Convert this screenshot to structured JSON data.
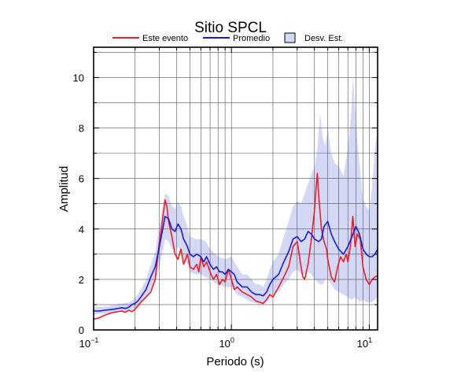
{
  "chart_data": {
    "type": "line",
    "title": "Sitio SPCL",
    "xlabel": "Periodo (s)",
    "ylabel": "Amplitud",
    "x_scale": "log",
    "xlim": [
      0.1,
      11.5
    ],
    "ylim": [
      0,
      11.2
    ],
    "x_ticks": [
      {
        "base": "10",
        "exp": "−1",
        "value": 0.1
      },
      {
        "base": "10",
        "exp": "0",
        "value": 1
      },
      {
        "base": "10",
        "exp": "1",
        "value": 10
      }
    ],
    "y_ticks": [
      "0",
      "2",
      "4",
      "6",
      "8",
      "10"
    ],
    "grid": true,
    "legend_position": "top",
    "legend": [
      {
        "label": "Este evento",
        "kind": "line",
        "color": "#ee1c25"
      },
      {
        "label": "Promedio",
        "kind": "line",
        "color": "#1a1ad6"
      },
      {
        "label": "Desv. Est.",
        "kind": "box",
        "color": "#d4d8f7"
      }
    ],
    "series": [
      {
        "name": "Este evento",
        "color": "#ee1c25",
        "points": [
          [
            0.1,
            0.42
          ],
          [
            0.11,
            0.48
          ],
          [
            0.12,
            0.58
          ],
          [
            0.13,
            0.65
          ],
          [
            0.14,
            0.7
          ],
          [
            0.15,
            0.72
          ],
          [
            0.16,
            0.75
          ],
          [
            0.17,
            0.7
          ],
          [
            0.18,
            0.78
          ],
          [
            0.19,
            0.72
          ],
          [
            0.2,
            0.82
          ],
          [
            0.21,
            0.95
          ],
          [
            0.22,
            1.1
          ],
          [
            0.24,
            1.3
          ],
          [
            0.26,
            1.5
          ],
          [
            0.28,
            2.0
          ],
          [
            0.3,
            3.5
          ],
          [
            0.31,
            4.0
          ],
          [
            0.32,
            4.6
          ],
          [
            0.33,
            5.15
          ],
          [
            0.34,
            4.9
          ],
          [
            0.35,
            4.3
          ],
          [
            0.37,
            3.7
          ],
          [
            0.39,
            3.0
          ],
          [
            0.41,
            2.8
          ],
          [
            0.43,
            3.2
          ],
          [
            0.45,
            2.6
          ],
          [
            0.48,
            3.0
          ],
          [
            0.5,
            2.5
          ],
          [
            0.53,
            2.4
          ],
          [
            0.56,
            2.6
          ],
          [
            0.58,
            2.3
          ],
          [
            0.6,
            2.9
          ],
          [
            0.63,
            2.5
          ],
          [
            0.66,
            2.7
          ],
          [
            0.7,
            2.3
          ],
          [
            0.74,
            2.0
          ],
          [
            0.78,
            2.2
          ],
          [
            0.82,
            1.8
          ],
          [
            0.86,
            2.0
          ],
          [
            0.9,
            1.9
          ],
          [
            0.95,
            2.4
          ],
          [
            1.0,
            2.0
          ],
          [
            1.05,
            1.6
          ],
          [
            1.1,
            1.7
          ],
          [
            1.2,
            1.5
          ],
          [
            1.3,
            1.4
          ],
          [
            1.4,
            1.3
          ],
          [
            1.5,
            1.15
          ],
          [
            1.6,
            1.1
          ],
          [
            1.7,
            1.05
          ],
          [
            1.8,
            1.2
          ],
          [
            1.9,
            1.4
          ],
          [
            2.0,
            1.3
          ],
          [
            2.1,
            1.5
          ],
          [
            2.2,
            1.7
          ],
          [
            2.4,
            2.1
          ],
          [
            2.6,
            2.5
          ],
          [
            2.8,
            3.3
          ],
          [
            3.0,
            3.5
          ],
          [
            3.1,
            3.0
          ],
          [
            3.2,
            2.5
          ],
          [
            3.3,
            2.1
          ],
          [
            3.4,
            2.0
          ],
          [
            3.6,
            2.6
          ],
          [
            3.8,
            3.6
          ],
          [
            4.0,
            4.7
          ],
          [
            4.1,
            5.5
          ],
          [
            4.2,
            6.2
          ],
          [
            4.3,
            5.3
          ],
          [
            4.5,
            4.0
          ],
          [
            4.7,
            3.5
          ],
          [
            4.9,
            3.2
          ],
          [
            5.0,
            2.8
          ],
          [
            5.3,
            2.1
          ],
          [
            5.6,
            1.9
          ],
          [
            5.9,
            2.5
          ],
          [
            6.2,
            2.9
          ],
          [
            6.5,
            2.7
          ],
          [
            6.8,
            3.0
          ],
          [
            7.0,
            2.7
          ],
          [
            7.3,
            3.3
          ],
          [
            7.6,
            4.5
          ],
          [
            7.9,
            3.3
          ],
          [
            8.2,
            3.8
          ],
          [
            8.6,
            3.6
          ],
          [
            9.0,
            2.5
          ],
          [
            9.5,
            2.0
          ],
          [
            10.0,
            1.8
          ],
          [
            10.5,
            2.0
          ],
          [
            11.0,
            2.1
          ],
          [
            11.5,
            2.15
          ]
        ]
      },
      {
        "name": "Promedio",
        "color": "#1a1ad6",
        "points": [
          [
            0.1,
            0.75
          ],
          [
            0.11,
            0.75
          ],
          [
            0.12,
            0.78
          ],
          [
            0.13,
            0.8
          ],
          [
            0.14,
            0.82
          ],
          [
            0.15,
            0.85
          ],
          [
            0.16,
            0.88
          ],
          [
            0.17,
            0.85
          ],
          [
            0.18,
            0.9
          ],
          [
            0.19,
            1.0
          ],
          [
            0.2,
            1.05
          ],
          [
            0.21,
            1.15
          ],
          [
            0.22,
            1.3
          ],
          [
            0.24,
            1.6
          ],
          [
            0.26,
            2.1
          ],
          [
            0.28,
            2.5
          ],
          [
            0.3,
            3.3
          ],
          [
            0.32,
            4.1
          ],
          [
            0.33,
            4.5
          ],
          [
            0.35,
            4.4
          ],
          [
            0.37,
            4.0
          ],
          [
            0.39,
            3.9
          ],
          [
            0.41,
            4.2
          ],
          [
            0.43,
            4.0
          ],
          [
            0.45,
            3.6
          ],
          [
            0.48,
            3.3
          ],
          [
            0.5,
            3.0
          ],
          [
            0.53,
            2.9
          ],
          [
            0.56,
            3.0
          ],
          [
            0.6,
            2.9
          ],
          [
            0.63,
            2.7
          ],
          [
            0.66,
            2.9
          ],
          [
            0.7,
            2.6
          ],
          [
            0.74,
            2.4
          ],
          [
            0.78,
            2.5
          ],
          [
            0.82,
            2.3
          ],
          [
            0.86,
            2.3
          ],
          [
            0.9,
            2.2
          ],
          [
            0.95,
            2.4
          ],
          [
            1.0,
            2.3
          ],
          [
            1.05,
            2.2
          ],
          [
            1.1,
            1.9
          ],
          [
            1.2,
            1.7
          ],
          [
            1.3,
            1.7
          ],
          [
            1.4,
            1.5
          ],
          [
            1.5,
            1.4
          ],
          [
            1.6,
            1.4
          ],
          [
            1.7,
            1.35
          ],
          [
            1.8,
            1.5
          ],
          [
            1.9,
            1.8
          ],
          [
            2.0,
            2.0
          ],
          [
            2.2,
            2.2
          ],
          [
            2.4,
            2.7
          ],
          [
            2.6,
            3.1
          ],
          [
            2.8,
            3.6
          ],
          [
            3.0,
            3.7
          ],
          [
            3.2,
            3.5
          ],
          [
            3.4,
            3.6
          ],
          [
            3.6,
            3.9
          ],
          [
            3.8,
            3.8
          ],
          [
            4.0,
            3.6
          ],
          [
            4.3,
            3.5
          ],
          [
            4.5,
            3.6
          ],
          [
            4.7,
            4.1
          ],
          [
            5.0,
            4.3
          ],
          [
            5.3,
            3.8
          ],
          [
            5.6,
            3.5
          ],
          [
            6.0,
            3.2
          ],
          [
            6.5,
            3.0
          ],
          [
            7.0,
            3.3
          ],
          [
            7.5,
            3.7
          ],
          [
            8.0,
            4.1
          ],
          [
            8.5,
            3.8
          ],
          [
            9.0,
            3.2
          ],
          [
            9.5,
            3.0
          ],
          [
            10.0,
            2.9
          ],
          [
            10.5,
            2.9
          ],
          [
            11.0,
            3.0
          ],
          [
            11.5,
            3.2
          ]
        ]
      }
    ],
    "band": {
      "name": "Desv. Est.",
      "color": "#d4d8f7",
      "points": [
        [
          0.1,
          0.62,
          0.9
        ],
        [
          0.12,
          0.65,
          0.92
        ],
        [
          0.14,
          0.68,
          0.98
        ],
        [
          0.16,
          0.72,
          1.05
        ],
        [
          0.18,
          0.75,
          1.08
        ],
        [
          0.2,
          0.85,
          1.25
        ],
        [
          0.22,
          1.0,
          1.6
        ],
        [
          0.24,
          1.25,
          2.0
        ],
        [
          0.26,
          1.6,
          2.6
        ],
        [
          0.28,
          1.9,
          3.1
        ],
        [
          0.3,
          2.5,
          4.1
        ],
        [
          0.32,
          3.2,
          5.0
        ],
        [
          0.33,
          3.6,
          5.4
        ],
        [
          0.35,
          3.5,
          5.3
        ],
        [
          0.37,
          3.2,
          4.9
        ],
        [
          0.39,
          3.1,
          4.8
        ],
        [
          0.41,
          3.3,
          5.1
        ],
        [
          0.43,
          3.1,
          4.9
        ],
        [
          0.45,
          2.8,
          4.5
        ],
        [
          0.48,
          2.6,
          4.1
        ],
        [
          0.5,
          2.3,
          3.7
        ],
        [
          0.55,
          2.2,
          3.6
        ],
        [
          0.6,
          2.2,
          3.6
        ],
        [
          0.65,
          2.1,
          3.5
        ],
        [
          0.7,
          2.0,
          3.2
        ],
        [
          0.8,
          1.8,
          2.9
        ],
        [
          0.9,
          1.7,
          2.8
        ],
        [
          1.0,
          1.7,
          2.9
        ],
        [
          1.1,
          1.4,
          2.5
        ],
        [
          1.2,
          1.3,
          2.2
        ],
        [
          1.3,
          1.2,
          2.2
        ],
        [
          1.4,
          1.1,
          2.0
        ],
        [
          1.5,
          1.05,
          1.8
        ],
        [
          1.6,
          1.0,
          1.8
        ],
        [
          1.7,
          1.0,
          1.7
        ],
        [
          1.8,
          1.1,
          2.0
        ],
        [
          1.9,
          1.3,
          2.4
        ],
        [
          2.0,
          1.4,
          2.7
        ],
        [
          2.2,
          1.5,
          3.0
        ],
        [
          2.4,
          1.8,
          3.7
        ],
        [
          2.6,
          2.0,
          4.3
        ],
        [
          2.8,
          2.3,
          4.9
        ],
        [
          3.0,
          2.4,
          5.1
        ],
        [
          3.2,
          2.2,
          5.0
        ],
        [
          3.4,
          2.2,
          5.4
        ],
        [
          3.6,
          2.3,
          5.8
        ],
        [
          3.8,
          2.2,
          6.2
        ],
        [
          4.0,
          2.0,
          6.4
        ],
        [
          4.2,
          1.9,
          7.2
        ],
        [
          4.4,
          1.8,
          8.6
        ],
        [
          4.6,
          1.8,
          7.6
        ],
        [
          4.8,
          2.0,
          7.3
        ],
        [
          5.0,
          2.0,
          8.0
        ],
        [
          5.3,
          1.8,
          7.0
        ],
        [
          5.6,
          1.6,
          6.6
        ],
        [
          6.0,
          1.5,
          6.5
        ],
        [
          6.5,
          1.4,
          6.1
        ],
        [
          7.0,
          1.3,
          7.2
        ],
        [
          7.4,
          1.2,
          8.6
        ],
        [
          7.6,
          1.2,
          10.0
        ],
        [
          7.8,
          1.3,
          9.2
        ],
        [
          8.2,
          1.2,
          7.5
        ],
        [
          8.6,
          1.1,
          6.3
        ],
        [
          9.0,
          1.2,
          5.2
        ],
        [
          9.5,
          1.1,
          4.9
        ],
        [
          10.0,
          1.1,
          4.7
        ],
        [
          10.5,
          1.1,
          5.7
        ],
        [
          11.0,
          1.2,
          7.2
        ],
        [
          11.5,
          1.3,
          8.0
        ]
      ]
    }
  }
}
